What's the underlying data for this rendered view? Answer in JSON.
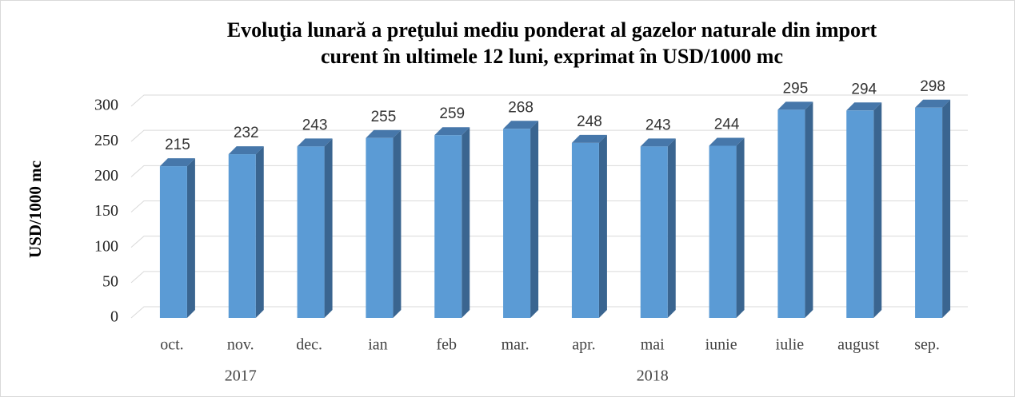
{
  "chart_data": {
    "type": "bar3d",
    "title": [
      "Evoluţia lunară a preţului mediu ponderat al gazelor naturale din import",
      "curent în ultimele 12 luni, exprimat în USD/1000 mc"
    ],
    "y_label": "USD/1000 mc",
    "categories": [
      "oct.",
      "nov.",
      "dec.",
      "ian",
      "feb",
      "mar.",
      "apr.",
      "mai",
      "iunie",
      "iulie",
      "august",
      "sep."
    ],
    "category_groups": [
      {
        "label": "2017",
        "count": 3
      },
      {
        "label": "2018",
        "count": 9
      }
    ],
    "values": [
      215,
      232,
      243,
      255,
      259,
      268,
      248,
      243,
      244,
      295,
      294,
      298
    ],
    "color": "#5b9bd5",
    "ylim": [
      0,
      300
    ],
    "yticks": [
      0,
      50,
      100,
      150,
      200,
      250,
      300
    ],
    "grid": true
  }
}
